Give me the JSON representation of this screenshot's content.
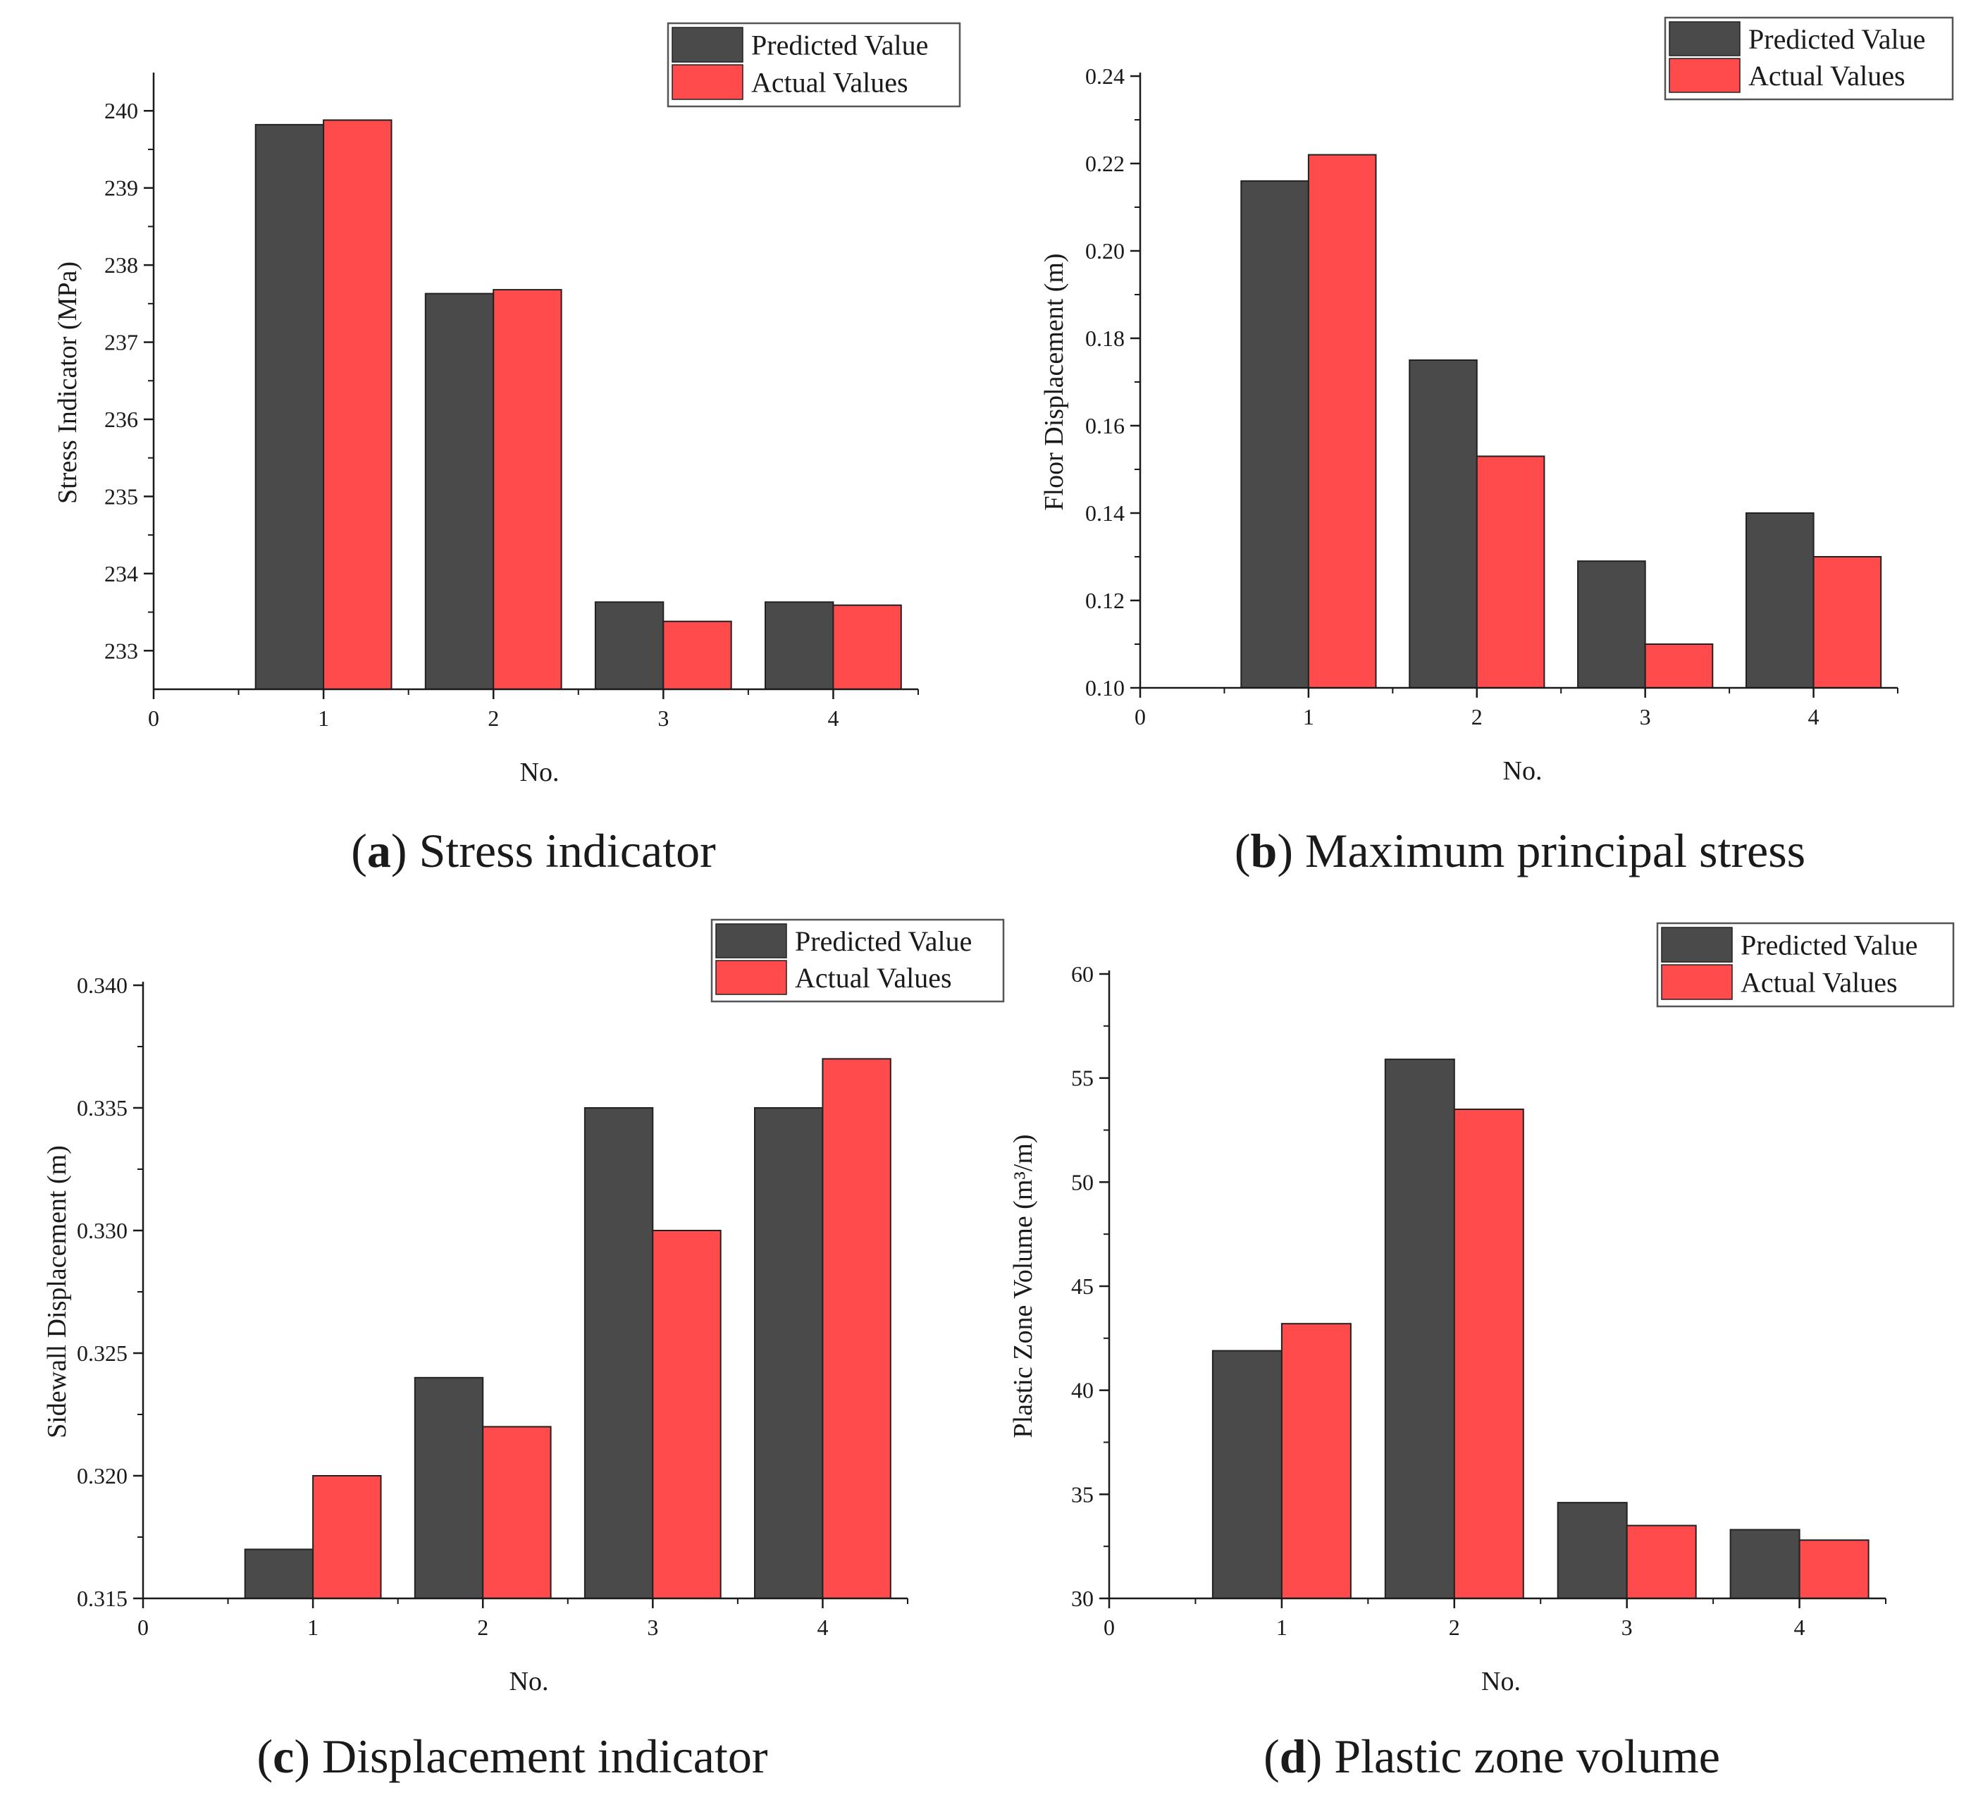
{
  "colors": {
    "predicted": "#4a4a4a",
    "actual": "#ff4b4b",
    "axis": "#1a1a1a"
  },
  "chart_data": [
    {
      "type": "bar",
      "panel": "a",
      "caption_letter": "a",
      "caption_text": "Stress indicator",
      "xlabel": "No.",
      "ylabel": "Stress Indicator (MPa)",
      "categories": [
        "1",
        "2",
        "3",
        "4"
      ],
      "xticks": [
        "0",
        "1",
        "2",
        "3",
        "4"
      ],
      "xlim": [
        0,
        4.5
      ],
      "ylim": [
        232.5,
        240.45
      ],
      "yticks": [
        233,
        234,
        235,
        236,
        237,
        238,
        239,
        240
      ],
      "yticks_labels": [
        "233",
        "234",
        "235",
        "236",
        "237",
        "238",
        "239",
        "240"
      ],
      "series": [
        {
          "name": "Predicted Value",
          "values": [
            239.82,
            237.63,
            233.63,
            233.63
          ]
        },
        {
          "name": "Actual Values",
          "values": [
            239.88,
            237.68,
            233.38,
            233.59
          ]
        }
      ],
      "legend_position": "top-right"
    },
    {
      "type": "bar",
      "panel": "b",
      "caption_letter": "b",
      "caption_text": "Maximum principal stress",
      "xlabel": "No.",
      "ylabel": "Floor Displacement (m)",
      "categories": [
        "1",
        "2",
        "3",
        "4"
      ],
      "xticks": [
        "0",
        "1",
        "2",
        "3",
        "4"
      ],
      "xlim": [
        0,
        4.5
      ],
      "ylim": [
        0.1,
        0.24
      ],
      "yticks": [
        0.1,
        0.12,
        0.14,
        0.16,
        0.18,
        0.2,
        0.22,
        0.24
      ],
      "yticks_labels": [
        "0.10",
        "0.12",
        "0.14",
        "0.16",
        "0.18",
        "0.20",
        "0.22",
        "0.24"
      ],
      "series": [
        {
          "name": "Predicted Value",
          "values": [
            0.216,
            0.175,
            0.129,
            0.14
          ]
        },
        {
          "name": "Actual Values",
          "values": [
            0.222,
            0.153,
            0.11,
            0.13
          ]
        }
      ],
      "legend_position": "top-right"
    },
    {
      "type": "bar",
      "panel": "c",
      "caption_letter": "c",
      "caption_text": "Displacement indicator",
      "xlabel": "No.",
      "ylabel": "Sidewall Displacement (m)",
      "categories": [
        "1",
        "2",
        "3",
        "4"
      ],
      "xticks": [
        "0",
        "1",
        "2",
        "3",
        "4"
      ],
      "xlim": [
        0,
        4.5
      ],
      "ylim": [
        0.315,
        0.34
      ],
      "yticks": [
        0.315,
        0.32,
        0.325,
        0.33,
        0.335,
        0.34
      ],
      "yticks_labels": [
        "0.315",
        "0.320",
        "0.325",
        "0.330",
        "0.335",
        "0.340"
      ],
      "series": [
        {
          "name": "Predicted Value",
          "values": [
            0.317,
            0.324,
            0.335,
            0.335
          ]
        },
        {
          "name": "Actual Values",
          "values": [
            0.32,
            0.322,
            0.33,
            0.337
          ]
        }
      ],
      "legend_position": "top-right"
    },
    {
      "type": "bar",
      "panel": "d",
      "caption_letter": "d",
      "caption_text": "Plastic zone volume",
      "xlabel": "No.",
      "ylabel": "Plastic Zone Volume (m³/m)",
      "categories": [
        "1",
        "2",
        "3",
        "4"
      ],
      "xticks": [
        "0",
        "1",
        "2",
        "3",
        "4"
      ],
      "xlim": [
        0,
        4.5
      ],
      "ylim": [
        30,
        60
      ],
      "yticks": [
        30,
        35,
        40,
        45,
        50,
        55,
        60
      ],
      "yticks_labels": [
        "30",
        "35",
        "40",
        "45",
        "50",
        "55",
        "60"
      ],
      "series": [
        {
          "name": "Predicted Value",
          "values": [
            41.9,
            55.9,
            34.6,
            33.3
          ]
        },
        {
          "name": "Actual Values",
          "values": [
            43.2,
            53.5,
            33.5,
            32.8
          ]
        }
      ],
      "legend_position": "top-right"
    }
  ]
}
